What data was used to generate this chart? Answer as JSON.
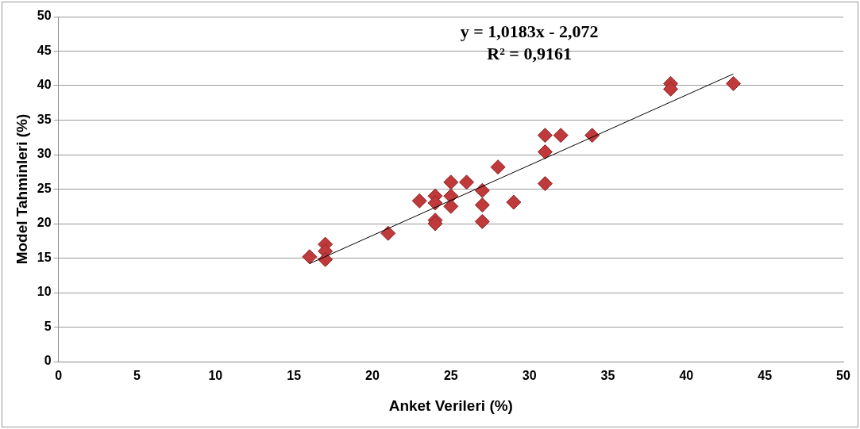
{
  "chart_data": {
    "type": "scatter",
    "xlabel": "Anket Verileri (%)",
    "ylabel": "Model Tahminleri (%)",
    "annotations": [
      "y = 1,0183x - 2,072",
      "R² = 0,9161"
    ],
    "series": [
      {
        "marker": "diamond",
        "color": "#c0393b",
        "x": [
          16,
          17,
          17,
          17,
          21,
          23,
          24,
          24,
          24,
          24,
          25,
          25,
          25,
          26,
          27,
          27,
          27,
          28,
          29,
          31,
          31,
          31,
          32,
          34,
          39,
          39,
          43
        ],
        "values": [
          15.2,
          17,
          16,
          14.8,
          18.6,
          23.3,
          24,
          23,
          20.5,
          20,
          26,
          24,
          22.5,
          26,
          24.8,
          22.7,
          20.3,
          28.2,
          23.1,
          32.8,
          30.4,
          25.8,
          32.8,
          32.8,
          40.3,
          39.5,
          40.3
        ]
      },
      {
        "type": "line",
        "color": "#000000",
        "x": [
          16,
          43
        ],
        "values": [
          14.2,
          41.7
        ]
      }
    ],
    "xlim": [
      0,
      50
    ],
    "xticks": [
      0,
      5,
      10,
      15,
      20,
      25,
      30,
      35,
      40,
      45,
      50
    ],
    "ylim": [
      0,
      50
    ],
    "yticks": [
      0,
      5,
      10,
      15,
      20,
      25,
      30,
      35,
      40,
      45,
      50
    ],
    "grid": "y",
    "legend": false
  }
}
